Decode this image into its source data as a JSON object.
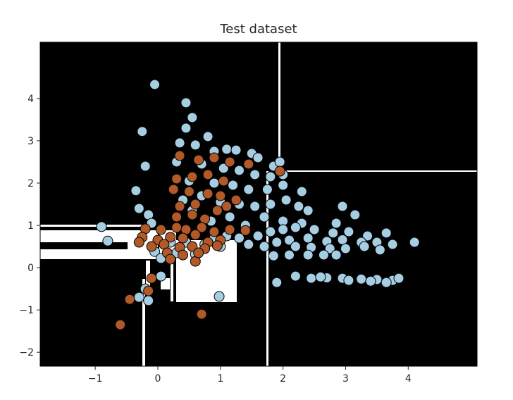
{
  "chart_data": {
    "type": "scatter",
    "title": "Test dataset",
    "xlim": [
      -1.88,
      5.1
    ],
    "ylim": [
      -2.33,
      5.33
    ],
    "xticks": [
      -1,
      0,
      1,
      2,
      3,
      4
    ],
    "yticks": [
      -2,
      -1,
      0,
      1,
      2,
      3,
      4
    ],
    "grid": false,
    "background_color": "#000000",
    "region_color": "#ffffff",
    "series": [
      {
        "color": "#a6cee3",
        "points": [
          [
            -0.05,
            4.33
          ],
          [
            0.45,
            3.9
          ],
          [
            0.55,
            3.55
          ],
          [
            0.45,
            3.3
          ],
          [
            -0.25,
            3.22
          ],
          [
            0.8,
            3.1
          ],
          [
            0.35,
            2.95
          ],
          [
            0.6,
            2.9
          ],
          [
            0.9,
            2.75
          ],
          [
            1.1,
            2.8
          ],
          [
            1.25,
            2.78
          ],
          [
            1.5,
            2.7
          ],
          [
            1.6,
            2.6
          ],
          [
            1.85,
            2.4
          ],
          [
            1.95,
            2.5
          ],
          [
            2.0,
            2.2
          ],
          [
            -0.2,
            2.4
          ],
          [
            0.3,
            2.5
          ],
          [
            0.7,
            2.45
          ],
          [
            1.05,
            2.35
          ],
          [
            1.3,
            2.3
          ],
          [
            1.55,
            2.2
          ],
          [
            1.8,
            2.15
          ],
          [
            -0.35,
            1.82
          ],
          [
            0.5,
            2.05
          ],
          [
            0.9,
            2.0
          ],
          [
            1.2,
            1.95
          ],
          [
            1.45,
            1.85
          ],
          [
            1.75,
            1.85
          ],
          [
            2.0,
            1.95
          ],
          [
            2.3,
            1.8
          ],
          [
            -0.3,
            1.4
          ],
          [
            -0.15,
            1.25
          ],
          [
            0.4,
            1.6
          ],
          [
            0.7,
            1.7
          ],
          [
            1.0,
            1.55
          ],
          [
            1.3,
            1.5
          ],
          [
            1.55,
            1.45
          ],
          [
            1.8,
            1.5
          ],
          [
            2.05,
            1.6
          ],
          [
            2.25,
            1.45
          ],
          [
            2.4,
            1.35
          ],
          [
            2.95,
            1.45
          ],
          [
            3.15,
            1.25
          ],
          [
            -0.1,
            1.05
          ],
          [
            0.3,
            1.2
          ],
          [
            0.55,
            1.35
          ],
          [
            0.85,
            1.1
          ],
          [
            1.15,
            1.2
          ],
          [
            1.4,
            1.0
          ],
          [
            1.7,
            1.2
          ],
          [
            2.0,
            1.1
          ],
          [
            2.3,
            1.05
          ],
          [
            2.85,
            1.05
          ],
          [
            -0.9,
            0.97
          ],
          [
            1.8,
            0.85
          ],
          [
            2.0,
            0.9
          ],
          [
            2.2,
            0.95
          ],
          [
            2.5,
            0.9
          ],
          [
            2.8,
            0.82
          ],
          [
            3.05,
            0.85
          ],
          [
            3.35,
            0.75
          ],
          [
            3.65,
            0.82
          ],
          [
            4.1,
            0.6
          ],
          [
            -0.8,
            0.63
          ],
          [
            0.9,
            0.7
          ],
          [
            1.1,
            0.75
          ],
          [
            1.3,
            0.7
          ],
          [
            1.6,
            0.75
          ],
          [
            1.9,
            0.6
          ],
          [
            2.1,
            0.65
          ],
          [
            2.4,
            0.7
          ],
          [
            2.7,
            0.62
          ],
          [
            2.95,
            0.66
          ],
          [
            3.25,
            0.6
          ],
          [
            3.5,
            0.6
          ],
          [
            3.75,
            0.55
          ],
          [
            0.2,
            0.6
          ],
          [
            0.45,
            0.6
          ],
          [
            0.75,
            0.55
          ],
          [
            1.0,
            0.5
          ],
          [
            1.45,
            0.55
          ],
          [
            1.7,
            0.5
          ],
          [
            2.2,
            0.5
          ],
          [
            2.45,
            0.48
          ],
          [
            2.75,
            0.45
          ],
          [
            3.0,
            0.45
          ],
          [
            3.3,
            0.5
          ],
          [
            3.55,
            0.42
          ],
          [
            -0.05,
            0.38
          ],
          [
            0.3,
            0.35
          ],
          [
            0.6,
            0.32
          ],
          [
            1.85,
            0.28
          ],
          [
            2.1,
            0.3
          ],
          [
            2.4,
            0.3
          ],
          [
            2.65,
            0.3
          ],
          [
            2.85,
            0.3
          ],
          [
            0.05,
            0.22
          ],
          [
            2.2,
            -0.2
          ],
          [
            2.45,
            -0.25
          ],
          [
            2.7,
            -0.24
          ],
          [
            2.95,
            -0.25
          ],
          [
            3.25,
            -0.27
          ],
          [
            3.5,
            -0.28
          ],
          [
            3.75,
            -0.3
          ],
          [
            3.85,
            -0.25
          ],
          [
            2.6,
            -0.22
          ],
          [
            3.05,
            -0.3
          ],
          [
            3.4,
            -0.32
          ],
          [
            3.65,
            -0.35
          ],
          [
            0.05,
            -0.2
          ],
          [
            1.9,
            -0.35
          ],
          [
            -0.2,
            -0.5
          ],
          [
            -0.3,
            -0.7
          ],
          [
            -0.15,
            -0.78
          ],
          [
            0.98,
            -0.68
          ]
        ]
      },
      {
        "color": "#b15928",
        "points": [
          [
            0.35,
            2.65
          ],
          [
            0.65,
            2.55
          ],
          [
            0.9,
            2.6
          ],
          [
            1.15,
            2.5
          ],
          [
            1.45,
            2.45
          ],
          [
            1.95,
            2.28
          ],
          [
            0.3,
            2.1
          ],
          [
            0.55,
            2.15
          ],
          [
            0.8,
            2.2
          ],
          [
            1.05,
            2.05
          ],
          [
            0.25,
            1.85
          ],
          [
            0.5,
            1.8
          ],
          [
            0.8,
            1.75
          ],
          [
            1.0,
            1.7
          ],
          [
            1.25,
            1.6
          ],
          [
            0.35,
            1.45
          ],
          [
            0.6,
            1.5
          ],
          [
            0.95,
            1.35
          ],
          [
            1.1,
            1.45
          ],
          [
            0.3,
            1.2
          ],
          [
            0.55,
            1.25
          ],
          [
            0.75,
            1.15
          ],
          [
            0.9,
            0.85
          ],
          [
            1.15,
            0.9
          ],
          [
            1.4,
            0.88
          ],
          [
            -0.2,
            0.92
          ],
          [
            0.05,
            0.9
          ],
          [
            0.3,
            0.95
          ],
          [
            0.45,
            0.9
          ],
          [
            0.7,
            0.95
          ],
          [
            -0.25,
            0.72
          ],
          [
            0.0,
            0.65
          ],
          [
            0.2,
            0.72
          ],
          [
            0.4,
            0.7
          ],
          [
            0.6,
            0.78
          ],
          [
            0.8,
            0.6
          ],
          [
            1.0,
            0.65
          ],
          [
            -0.3,
            0.6
          ],
          [
            -0.1,
            0.5
          ],
          [
            0.1,
            0.55
          ],
          [
            0.35,
            0.48
          ],
          [
            0.55,
            0.5
          ],
          [
            0.75,
            0.45
          ],
          [
            0.95,
            0.52
          ],
          [
            0.15,
            0.35
          ],
          [
            0.4,
            0.3
          ],
          [
            0.6,
            0.15
          ],
          [
            0.65,
            0.35
          ],
          [
            -0.1,
            -0.25
          ],
          [
            -0.15,
            -0.55
          ],
          [
            -0.45,
            -0.75
          ],
          [
            -0.6,
            -1.35
          ],
          [
            0.7,
            -1.1
          ],
          [
            0.2,
            0.2
          ]
        ]
      }
    ]
  }
}
